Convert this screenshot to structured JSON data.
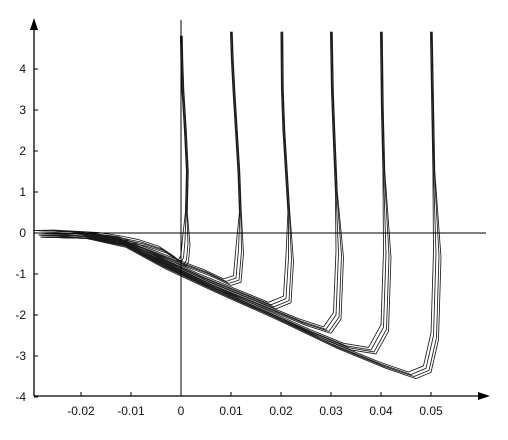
{
  "chart_data": {
    "type": "line",
    "title": "",
    "xlabel": "",
    "ylabel": "",
    "xlim": [
      -0.03,
      0.061
    ],
    "ylim": [
      -4,
      4.9
    ],
    "x_ticks": [
      -0.02,
      -0.01,
      0,
      0.01,
      0.02,
      0.03,
      0.04,
      0.05
    ],
    "x_tick_labels": [
      "-0.02",
      "-0.01",
      "0",
      "0.01",
      "0.02",
      "0.03",
      "0.04",
      "0.05"
    ],
    "y_ticks": [
      -4,
      -3,
      -2,
      -1,
      0,
      1,
      2,
      3,
      4
    ],
    "y_tick_labels": [
      "-4",
      "-3",
      "-2",
      "-1",
      "0",
      "1",
      "2",
      "3",
      "4"
    ],
    "grid": false,
    "line_color": "#1a1a1a",
    "series": [
      {
        "x": [
          -0.029,
          -0.025,
          -0.02,
          -0.016,
          -0.012,
          -0.008,
          -0.004,
          -0.001,
          0.0,
          0.0005,
          0.0008,
          0.001,
          0.0012,
          0.0008,
          0.0003,
          0.0001,
          0.0
        ],
        "y": [
          0.0,
          0.01,
          -0.02,
          -0.05,
          -0.12,
          -0.22,
          -0.38,
          -0.62,
          -0.72,
          -0.6,
          -0.2,
          0.5,
          1.5,
          2.5,
          3.5,
          4.2,
          4.8
        ]
      },
      {
        "x": [
          -0.029,
          -0.02,
          -0.012,
          -0.005,
          0.0,
          0.005,
          0.009,
          0.011,
          0.0115,
          0.0118,
          0.0115,
          0.011,
          0.0105,
          0.0102,
          0.01
        ],
        "y": [
          0.0,
          -0.03,
          -0.15,
          -0.48,
          -0.72,
          -0.95,
          -1.18,
          -1.1,
          -0.4,
          0.5,
          1.5,
          2.5,
          3.5,
          4.2,
          4.9
        ]
      },
      {
        "x": [
          -0.029,
          -0.02,
          -0.012,
          -0.004,
          0.004,
          0.012,
          0.018,
          0.021,
          0.0215,
          0.0215,
          0.021,
          0.0205,
          0.0202,
          0.0201
        ],
        "y": [
          0.0,
          -0.03,
          -0.18,
          -0.6,
          -1.05,
          -1.45,
          -1.75,
          -1.6,
          -0.6,
          0.5,
          1.5,
          2.5,
          3.5,
          4.9
        ]
      },
      {
        "x": [
          -0.029,
          -0.02,
          -0.012,
          -0.004,
          0.006,
          0.016,
          0.024,
          0.029,
          0.031,
          0.0315,
          0.031,
          0.0305,
          0.0302,
          0.03
        ],
        "y": [
          0.0,
          -0.03,
          -0.2,
          -0.66,
          -1.25,
          -1.75,
          -2.15,
          -2.35,
          -2.0,
          -0.5,
          1.0,
          2.5,
          3.5,
          4.9
        ]
      },
      {
        "x": [
          -0.029,
          -0.02,
          -0.012,
          -0.004,
          0.006,
          0.016,
          0.026,
          0.033,
          0.038,
          0.0405,
          0.041,
          0.0405,
          0.0402,
          0.04
        ],
        "y": [
          0.0,
          -0.03,
          -0.22,
          -0.72,
          -1.3,
          -1.85,
          -2.4,
          -2.75,
          -2.85,
          -2.3,
          -0.5,
          1.5,
          3.0,
          4.9
        ]
      },
      {
        "x": [
          -0.029,
          -0.02,
          -0.012,
          -0.004,
          0.006,
          0.018,
          0.03,
          0.04,
          0.046,
          0.049,
          0.0505,
          0.051,
          0.0505,
          0.0502,
          0.05
        ],
        "y": [
          0.0,
          -0.03,
          -0.25,
          -0.78,
          -1.35,
          -2.0,
          -2.7,
          -3.2,
          -3.45,
          -3.3,
          -2.5,
          -0.5,
          1.5,
          3.5,
          4.9
        ]
      }
    ]
  }
}
